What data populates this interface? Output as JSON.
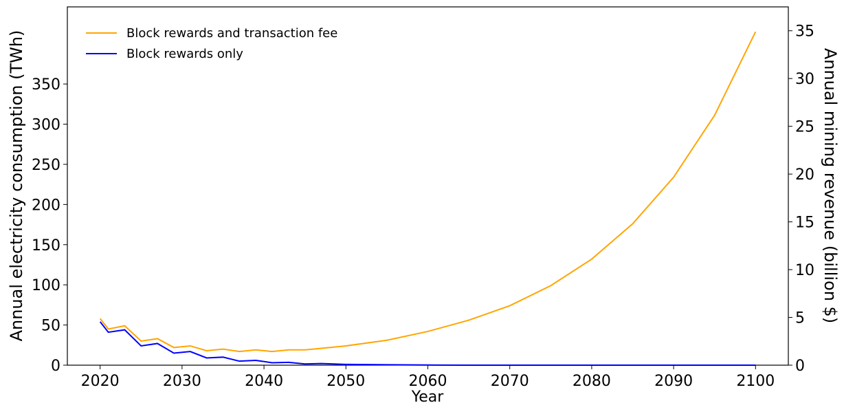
{
  "chart_data": {
    "type": "line",
    "xlabel": "Year",
    "ylabel": "Annual electricity consumption (TWh)",
    "y2label": "Annual mining revenue (billion $)",
    "x": [
      2020,
      2021,
      2023,
      2025,
      2027,
      2029,
      2031,
      2033,
      2035,
      2037,
      2039,
      2041,
      2043,
      2045,
      2047,
      2050,
      2055,
      2060,
      2065,
      2070,
      2075,
      2080,
      2085,
      2090,
      2095,
      2100
    ],
    "series": [
      {
        "name": "Block rewards and transaction fee",
        "color": "#ffa500",
        "values": [
          58,
          45,
          49,
          30,
          33,
          22,
          24,
          18,
          20,
          17,
          19,
          17,
          19,
          19,
          21,
          24,
          31,
          42,
          56,
          74,
          99,
          132,
          176,
          234,
          311,
          415
        ]
      },
      {
        "name": "Block rewards only",
        "color": "#0000ff",
        "values": [
          54,
          41,
          44,
          24,
          27,
          15,
          17,
          9,
          10,
          5,
          6,
          3,
          3.5,
          1.5,
          2,
          1,
          0.5,
          0.2,
          0,
          0,
          0,
          0,
          0,
          0,
          0,
          0
        ]
      }
    ],
    "xlim": [
      2016,
      2104
    ],
    "xticks": [
      2020,
      2030,
      2040,
      2050,
      2060,
      2070,
      2080,
      2090,
      2100
    ],
    "ylim": [
      0,
      446
    ],
    "yticks": [
      0,
      50,
      100,
      150,
      200,
      250,
      300,
      350
    ],
    "y2lim": [
      0,
      37.5
    ],
    "y2ticks": [
      0,
      5,
      10,
      15,
      20,
      25,
      30,
      35
    ],
    "legend": "upper left"
  }
}
